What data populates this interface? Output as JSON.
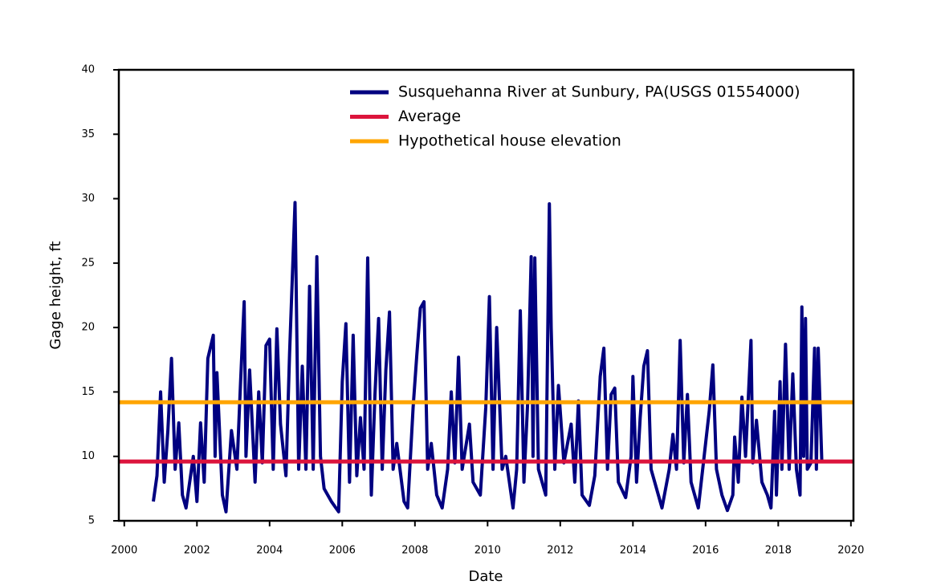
{
  "chart_data": {
    "type": "line",
    "x_label": "Date",
    "y_label": "Gage height, ft",
    "xlim": [
      1999.85,
      2020.07
    ],
    "ylim": [
      5,
      40
    ],
    "xticks": [
      2000,
      2002,
      2004,
      2006,
      2008,
      2010,
      2012,
      2014,
      2016,
      2018,
      2020
    ],
    "yticks": [
      5,
      10,
      15,
      20,
      25,
      30,
      35,
      40
    ],
    "legend": "upper-right",
    "series": [
      {
        "name": "Susquehanna River at Sunbury, PA(USGS 01554000)",
        "color": "#000080",
        "x": [
          2000.8,
          2000.9,
          2001.0,
          2001.1,
          2001.2,
          2001.3,
          2001.4,
          2001.5,
          2001.6,
          2001.7,
          2001.9,
          2002.0,
          2002.1,
          2002.2,
          2002.3,
          2002.45,
          2002.5,
          2002.55,
          2002.7,
          2002.8,
          2002.95,
          2003.1,
          2003.2,
          2003.3,
          2003.35,
          2003.45,
          2003.6,
          2003.7,
          2003.8,
          2003.9,
          2004.0,
          2004.1,
          2004.2,
          2004.3,
          2004.45,
          2004.55,
          2004.7,
          2004.8,
          2004.9,
          2005.0,
          2005.1,
          2005.2,
          2005.3,
          2005.4,
          2005.5,
          2005.7,
          2005.9,
          2006.0,
          2006.1,
          2006.2,
          2006.3,
          2006.4,
          2006.5,
          2006.6,
          2006.7,
          2006.8,
          2006.9,
          2007.0,
          2007.1,
          2007.2,
          2007.3,
          2007.4,
          2007.5,
          2007.7,
          2007.8,
          2007.95,
          2008.05,
          2008.15,
          2008.25,
          2008.35,
          2008.45,
          2008.6,
          2008.75,
          2008.9,
          2009.0,
          2009.1,
          2009.2,
          2009.3,
          2009.5,
          2009.6,
          2009.8,
          2009.95,
          2010.05,
          2010.15,
          2010.25,
          2010.4,
          2010.5,
          2010.7,
          2010.8,
          2010.9,
          2011.0,
          2011.1,
          2011.2,
          2011.25,
          2011.3,
          2011.4,
          2011.5,
          2011.6,
          2011.7,
          2011.75,
          2011.85,
          2011.95,
          2012.1,
          2012.3,
          2012.4,
          2012.5,
          2012.6,
          2012.8,
          2012.95,
          2013.1,
          2013.2,
          2013.3,
          2013.4,
          2013.5,
          2013.6,
          2013.8,
          2013.95,
          2014.0,
          2014.1,
          2014.2,
          2014.3,
          2014.4,
          2014.5,
          2014.6,
          2014.8,
          2015.0,
          2015.1,
          2015.2,
          2015.3,
          2015.4,
          2015.5,
          2015.6,
          2015.8,
          2016.0,
          2016.1,
          2016.2,
          2016.3,
          2016.45,
          2016.6,
          2016.75,
          2016.8,
          2016.9,
          2017.0,
          2017.1,
          2017.25,
          2017.3,
          2017.4,
          2017.55,
          2017.7,
          2017.8,
          2017.9,
          2017.95,
          2018.05,
          2018.1,
          2018.2,
          2018.3,
          2018.4,
          2018.5,
          2018.6,
          2018.65,
          2018.7,
          2018.75,
          2018.8,
          2018.9,
          2019.0,
          2019.05,
          2019.1,
          2019.2
        ],
        "values": [
          6.5,
          8.5,
          15,
          8,
          12,
          17.6,
          9,
          12.6,
          7,
          6,
          10,
          6.5,
          12.6,
          8,
          17.6,
          19.4,
          10,
          16.5,
          7,
          5.7,
          12,
          9,
          15.7,
          22,
          10,
          16.7,
          8,
          15,
          9.5,
          18.6,
          19.1,
          9,
          19.9,
          12.5,
          8.5,
          18,
          29.7,
          9,
          17,
          9,
          23.2,
          9,
          25.5,
          10,
          7.5,
          6.5,
          5.7,
          15.8,
          20.3,
          8,
          19.4,
          8.5,
          13,
          9,
          25.4,
          7,
          14.8,
          20.7,
          9,
          16.7,
          21.2,
          9,
          11,
          6.5,
          6,
          13.8,
          17.8,
          21.5,
          22,
          9,
          11,
          7,
          6,
          9,
          15,
          9.5,
          17.7,
          9,
          12.5,
          8,
          7,
          13.8,
          22.4,
          9,
          20,
          9,
          10,
          6,
          9,
          21.3,
          8,
          14,
          25.5,
          10,
          25.4,
          9,
          8,
          7,
          29.6,
          20,
          9,
          15.5,
          9.5,
          12.5,
          8,
          14.3,
          7,
          6.2,
          8.5,
          16.2,
          18.4,
          9,
          14.8,
          15.3,
          8,
          6.8,
          10,
          16.2,
          8,
          13,
          17,
          18.2,
          9,
          8,
          6,
          9,
          11.7,
          9,
          19,
          9.5,
          14.8,
          8,
          6,
          11,
          13.5,
          17.1,
          9,
          7,
          5.8,
          7,
          11.5,
          8,
          14.6,
          10,
          19,
          9.5,
          12.8,
          8,
          7,
          6,
          13.5,
          7,
          15.8,
          9,
          18.7,
          9,
          16.4,
          9,
          7,
          21.6,
          10,
          20.7,
          9,
          9.5,
          18.4,
          9,
          18.4,
          9.5
        ]
      }
    ],
    "reference_lines": [
      {
        "name": "Average",
        "color": "#dc143c",
        "value": 9.6
      },
      {
        "name": "Hypothetical house elevation",
        "color": "#ffa500",
        "value": 14.2
      }
    ]
  }
}
